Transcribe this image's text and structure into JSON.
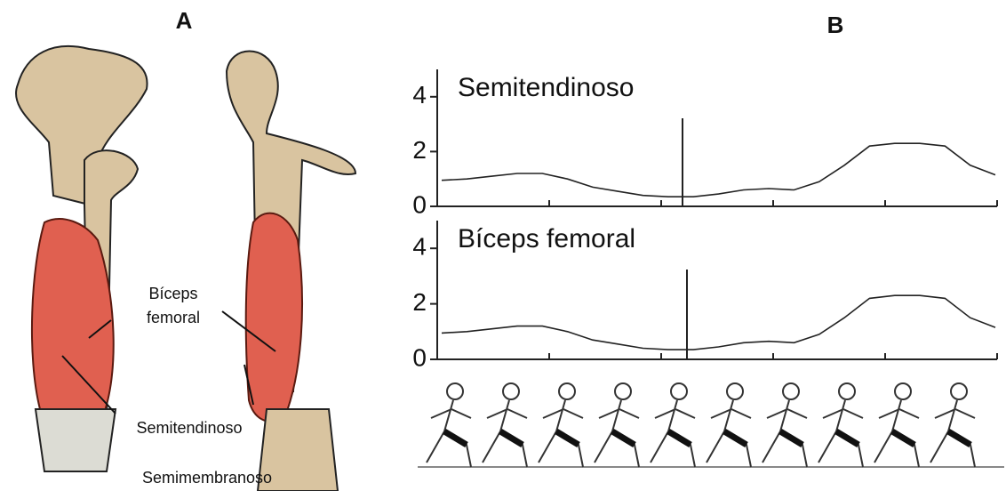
{
  "panels": {
    "a_label": "A",
    "b_label": "B"
  },
  "anatomy_labels": {
    "biceps_line1": "Bíceps",
    "biceps_line2": "femoral",
    "semitendinoso": "Semitendinoso",
    "semimembranoso": "Semimembranoso"
  },
  "chart_data": [
    {
      "type": "line",
      "title": "Semitendinoso",
      "categories": [
        null,
        null,
        null,
        null,
        null,
        null,
        null,
        null,
        null,
        null,
        null,
        null,
        null,
        null,
        null,
        null,
        null,
        null,
        null,
        null,
        null,
        null,
        null
      ],
      "values": [
        0.95,
        1.0,
        1.1,
        1.2,
        1.2,
        1.0,
        0.7,
        0.55,
        0.4,
        0.35,
        0.35,
        0.45,
        0.6,
        0.65,
        0.6,
        0.9,
        1.5,
        2.2,
        2.3,
        2.3,
        2.2,
        1.5,
        1.15
      ],
      "color": "#222",
      "ylim": [
        0,
        5
      ],
      "yticks": [
        0,
        2,
        4
      ]
    },
    {
      "type": "line",
      "title": "Bíceps femoral",
      "categories": [
        null,
        null,
        null,
        null,
        null,
        null,
        null,
        null,
        null,
        null,
        null,
        null,
        null,
        null,
        null,
        null,
        null,
        null,
        null,
        null,
        null,
        null,
        null
      ],
      "values": [
        0.95,
        1.0,
        1.1,
        1.2,
        1.2,
        1.0,
        0.7,
        0.55,
        0.4,
        0.35,
        0.35,
        0.45,
        0.6,
        0.65,
        0.6,
        0.9,
        1.5,
        2.2,
        2.3,
        2.3,
        2.2,
        1.5,
        1.15
      ],
      "color": "#222",
      "ylim": [
        0,
        5
      ],
      "yticks": [
        0,
        2,
        4
      ]
    }
  ]
}
